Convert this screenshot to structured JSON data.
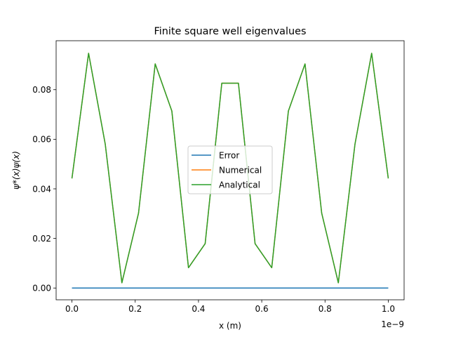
{
  "chart_data": {
    "type": "line",
    "title": "Finite square well eigenvalues",
    "xlabel": "x (m)",
    "ylabel": "ψ*(x)ψ(x)",
    "x_offset_label": "1e−9",
    "xlim": [
      -0.05,
      1.05
    ],
    "ylim": [
      -0.00475,
      0.09975
    ],
    "xticks": [
      0.0,
      0.2,
      0.4,
      0.6,
      0.8,
      1.0
    ],
    "xtick_labels": [
      "0.0",
      "0.2",
      "0.4",
      "0.6",
      "0.8",
      "1.0"
    ],
    "yticks": [
      0.0,
      0.02,
      0.04,
      0.06,
      0.08
    ],
    "ytick_labels": [
      "0.00",
      "0.02",
      "0.04",
      "0.06",
      "0.08"
    ],
    "grid": false,
    "legend_position": "center",
    "x": [
      0.0,
      0.0526,
      0.1053,
      0.1579,
      0.2105,
      0.2632,
      0.3158,
      0.3684,
      0.4211,
      0.4737,
      0.5263,
      0.5789,
      0.6316,
      0.6842,
      0.7368,
      0.7895,
      0.8421,
      0.8947,
      0.9474,
      1.0
    ],
    "series": [
      {
        "name": "Error",
        "color": "#1f77b4",
        "values": [
          0,
          0,
          0,
          0,
          0,
          0,
          0,
          0,
          0,
          0,
          0,
          0,
          0,
          0,
          0,
          0,
          0,
          0,
          0,
          0
        ]
      },
      {
        "name": "Numerical",
        "color": "#ff7f0e",
        "values": [
          0.0442,
          0.0947,
          0.058,
          0.0021,
          0.0302,
          0.0904,
          0.0714,
          0.0082,
          0.0179,
          0.0826,
          0.0826,
          0.0179,
          0.0082,
          0.0714,
          0.0904,
          0.0302,
          0.0021,
          0.058,
          0.0947,
          0.0442
        ]
      },
      {
        "name": "Analytical",
        "color": "#2ca02c",
        "values": [
          0.0442,
          0.0947,
          0.058,
          0.0021,
          0.0302,
          0.0904,
          0.0714,
          0.0082,
          0.0179,
          0.0826,
          0.0826,
          0.0179,
          0.0082,
          0.0714,
          0.0904,
          0.0302,
          0.0021,
          0.058,
          0.0947,
          0.0442
        ]
      }
    ]
  }
}
